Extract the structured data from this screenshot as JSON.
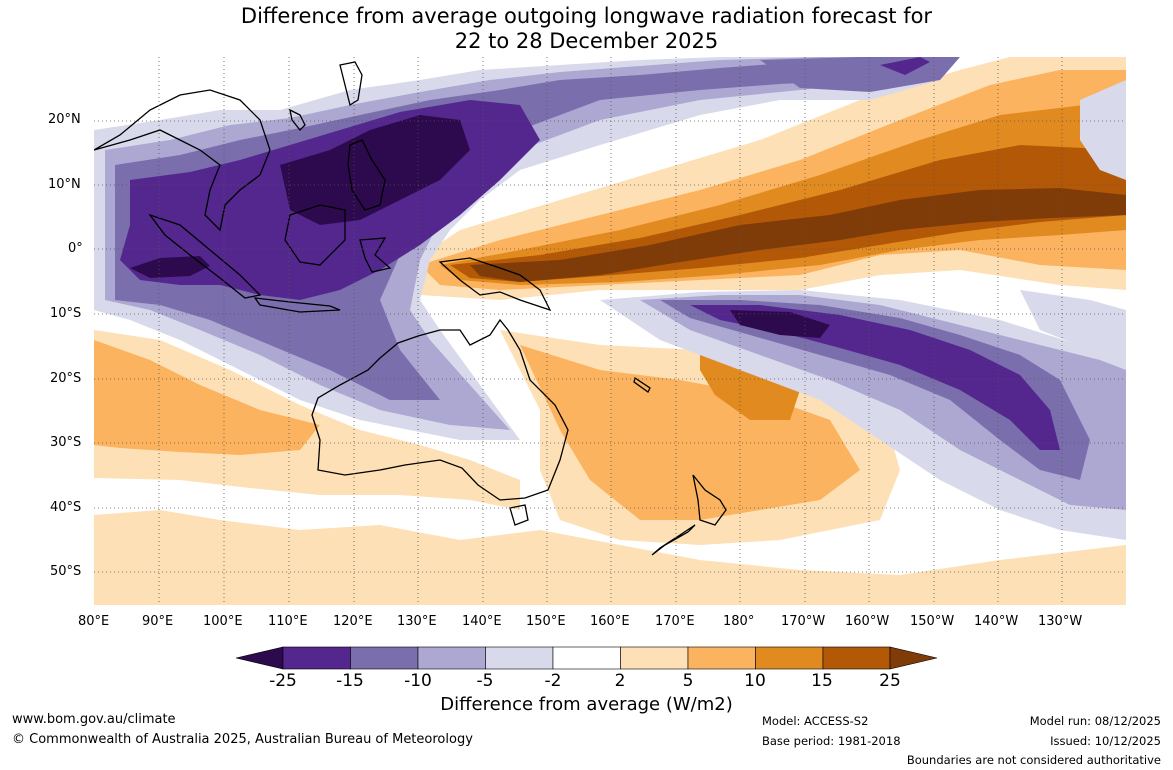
{
  "title": {
    "line1": "Difference from average outgoing longwave radiation forecast for",
    "line2": "22 to 28 December 2025"
  },
  "lat_labels": [
    "20°N",
    "10°N",
    "0°",
    "10°S",
    "20°S",
    "30°S",
    "40°S",
    "50°S"
  ],
  "lon_labels": [
    "80°E",
    "90°E",
    "100°E",
    "110°E",
    "120°E",
    "130°E",
    "140°E",
    "150°E",
    "160°E",
    "170°E",
    "180°",
    "170°W",
    "160°W",
    "150°W",
    "140°W",
    "130°W"
  ],
  "colorbar": {
    "title": "Difference from average (W/m2)",
    "labels": [
      "-25",
      "-15",
      "-10",
      "-5",
      "-2",
      "2",
      "5",
      "10",
      "15",
      "25"
    ],
    "colors": {
      "lt_minus25": "#2d0a4e",
      "m25_m15": "#54278f",
      "m15_m10": "#7b6ead",
      "m10_m5": "#aca8d2",
      "m5_m2": "#d9d9ec",
      "m2_2": "#ffffff",
      "p2_p5": "#fde0b5",
      "p5_p10": "#fbb35f",
      "p10_p15": "#e08a1f",
      "p15_p25": "#b35806",
      "gt_25": "#7f3b08"
    }
  },
  "footer": {
    "website": "www.bom.gov.au/climate",
    "copyright": "© Commonwealth of Australia 2025, Australian Bureau of Meteorology",
    "model": "Model: ACCESS-S2",
    "base_period": "Base period: 1981-2018",
    "model_run": "Model run: 08/12/2025",
    "issued": "Issued: 10/12/2025",
    "disclaimer": "Boundaries are not considered authoritative"
  }
}
